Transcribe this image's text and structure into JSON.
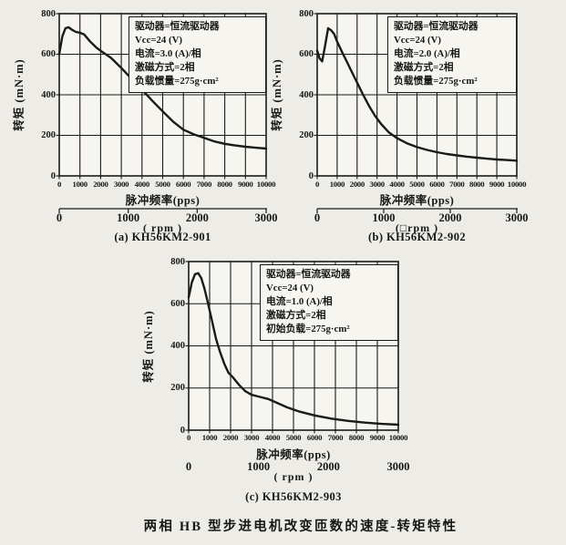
{
  "figure": {
    "caption": "两相 HB 型步进电机改变匝数的速度-转矩特性"
  },
  "chart_data": [
    {
      "id": "a",
      "type": "line",
      "title": "(a) KH56KM2-901",
      "model": "KH56KM2-901",
      "ylabel": "转矩 (mN·m)",
      "xlabel": "脉冲频率(pps)",
      "xlim": [
        0,
        10000
      ],
      "ylim": [
        0,
        800
      ],
      "xticks": [
        0,
        1000,
        2000,
        3000,
        4000,
        5000,
        6000,
        7000,
        8000,
        9000,
        10000
      ],
      "yticks": [
        0,
        200,
        400,
        600,
        800
      ],
      "grid": true,
      "legend_position": "none",
      "rpm_axis": {
        "ticks": [
          0,
          1000,
          2000,
          3000
        ],
        "unit": "( rpm )",
        "has_line": true
      },
      "annotation": [
        "驱动器=恒流驱动器",
        "Vcc=24 (V)",
        "电流=3.0 (A)/相",
        "激磁方式=2相",
        "负载惯量=275g·cm²"
      ],
      "x": [
        0,
        150,
        300,
        450,
        600,
        800,
        1000,
        1200,
        1500,
        1800,
        2100,
        2500,
        3000,
        3500,
        4000,
        4500,
        5000,
        5500,
        6000,
        6500,
        7000,
        7500,
        8000,
        8500,
        9000,
        9500,
        10000
      ],
      "y": [
        600,
        688,
        728,
        733,
        722,
        710,
        706,
        698,
        662,
        632,
        610,
        582,
        532,
        478,
        425,
        370,
        318,
        268,
        228,
        205,
        188,
        170,
        158,
        150,
        144,
        139,
        135
      ]
    },
    {
      "id": "b",
      "type": "line",
      "title": "(b) KH56KM2-902",
      "model": "KH56KM2-902",
      "ylabel": "转矩 (mN·m)",
      "xlabel": "脉冲频率(pps)",
      "xlim": [
        0,
        10000
      ],
      "ylim": [
        0,
        800
      ],
      "xticks": [
        0,
        1000,
        2000,
        3000,
        4000,
        5000,
        6000,
        7000,
        8000,
        9000,
        10000
      ],
      "yticks": [
        0,
        200,
        400,
        600,
        800
      ],
      "grid": true,
      "legend_position": "none",
      "rpm_axis": {
        "ticks": [
          0,
          1000,
          2000,
          3000
        ],
        "unit": "(□rpm )",
        "has_line": true
      },
      "annotation": [
        "驱动器=恒流驱动器",
        "Vcc=24 (V)",
        "电流=2.0 (A)/相",
        "激磁方式=2相",
        "负载惯量=275g·cm²"
      ],
      "x": [
        0,
        120,
        250,
        400,
        550,
        700,
        850,
        1000,
        1250,
        1500,
        1750,
        2000,
        2300,
        2600,
        2900,
        3200,
        3600,
        4000,
        4500,
        5000,
        5500,
        6000,
        6500,
        7000,
        7500,
        8000,
        8500,
        9000,
        9500,
        10000
      ],
      "y": [
        618,
        580,
        565,
        645,
        728,
        718,
        700,
        662,
        610,
        560,
        510,
        460,
        400,
        345,
        296,
        256,
        214,
        186,
        161,
        142,
        128,
        117,
        108,
        101,
        95,
        90,
        85,
        81,
        78,
        75
      ]
    },
    {
      "id": "c",
      "type": "line",
      "title": "(c) KH56KM2-903",
      "model": "KH56KM2-903",
      "ylabel": "转矩 (mN·m)",
      "xlabel": "脉冲频率(pps)",
      "xlim": [
        0,
        10000
      ],
      "ylim": [
        0,
        800
      ],
      "xticks": [
        0,
        1000,
        2000,
        3000,
        4000,
        5000,
        6000,
        7000,
        8000,
        9000,
        10000
      ],
      "yticks": [
        0,
        200,
        400,
        600,
        800
      ],
      "grid": true,
      "legend_position": "none",
      "rpm_axis": {
        "ticks": [
          0,
          1000,
          2000,
          3000
        ],
        "unit": "( rpm )",
        "has_line": false
      },
      "annotation": [
        "驱动器=恒流驱动器",
        "Vcc=24 (V)",
        "电流=1.0 (A)/相",
        "激磁方式=2相",
        "初始负载=275g·cm²"
      ],
      "x": [
        0,
        150,
        300,
        450,
        600,
        750,
        900,
        1100,
        1300,
        1500,
        1700,
        1900,
        2100,
        2400,
        2700,
        3000,
        3400,
        3800,
        4200,
        4700,
        5300,
        6000,
        6800,
        7600,
        8400,
        9200,
        10000
      ],
      "y": [
        630,
        700,
        740,
        745,
        722,
        672,
        612,
        525,
        435,
        370,
        315,
        272,
        252,
        215,
        185,
        168,
        158,
        148,
        130,
        108,
        88,
        70,
        55,
        44,
        36,
        30,
        26
      ]
    }
  ],
  "colors": {
    "ink": "#1a1a1a",
    "paper": "#edece7",
    "plot_fill": "#f6f5f0"
  }
}
